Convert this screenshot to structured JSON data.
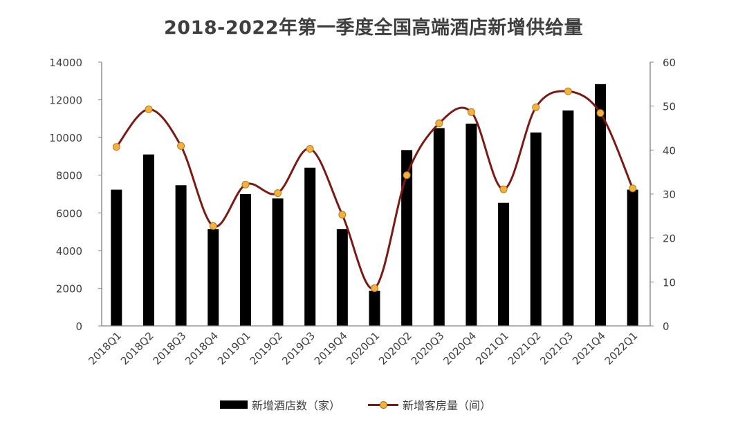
{
  "title": "2018-2022年第一季度全国高端酒店新增供给量",
  "colors": {
    "bar": "#000000",
    "line": "#7b1a12",
    "marker_fill": "#f4b23c",
    "marker_stroke": "#b07a20",
    "axis": "#808080",
    "text": "#404040"
  },
  "legend": {
    "bar_label": "新增酒店数（家）",
    "line_label": "新增客房量（间）"
  },
  "chart_data": {
    "type": "bar+line",
    "title": "2018-2022年第一季度全国高端酒店新增供给量",
    "categories": [
      "2018Q1",
      "2018Q2",
      "2018Q3",
      "2018Q4",
      "2019Q1",
      "2019Q2",
      "2019Q3",
      "2019Q4",
      "2020Q1",
      "2020Q2",
      "2020Q3",
      "2020Q4",
      "2021Q1",
      "2021Q2",
      "2021Q3",
      "2021Q4",
      "2022Q1"
    ],
    "series": [
      {
        "name": "新增酒店数（家）",
        "type": "bar",
        "axis": "right",
        "values": [
          31,
          39,
          32,
          22,
          30,
          29,
          36,
          22,
          8,
          40,
          45,
          46,
          28,
          44,
          49,
          55,
          31
        ]
      },
      {
        "name": "新增客房量（间）",
        "type": "line",
        "smooth": true,
        "axis": "left",
        "values": [
          9500,
          11500,
          9550,
          5300,
          7500,
          7050,
          9400,
          5900,
          2000,
          8000,
          10750,
          11350,
          7250,
          11600,
          12450,
          11300,
          7300
        ]
      }
    ],
    "left_axis": {
      "ylim": [
        0,
        14000
      ],
      "ticks": [
        0,
        2000,
        4000,
        6000,
        8000,
        10000,
        12000,
        14000
      ]
    },
    "right_axis": {
      "ylim": [
        0,
        60
      ],
      "ticks": [
        0,
        10,
        20,
        30,
        40,
        50,
        60
      ]
    },
    "xlabel": "",
    "ylabel": "",
    "grid": false,
    "legend_position": "bottom"
  }
}
